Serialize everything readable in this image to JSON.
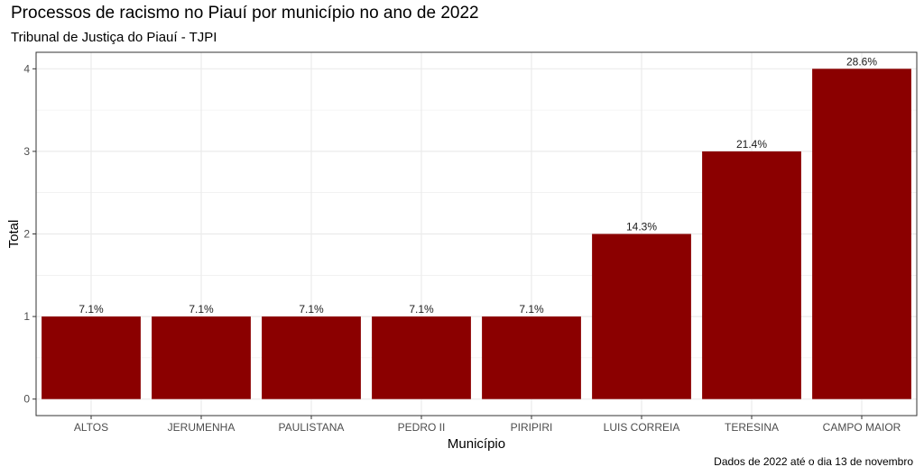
{
  "chart_data": {
    "type": "bar",
    "title": "Processos de racismo no Piauí por município no ano de 2022",
    "subtitle": "Tribunal de Justiça do Piauí - TJPI",
    "caption": "Dados de 2022 até o dia 13 de novembro",
    "xlabel": "Município",
    "ylabel": "Total",
    "categories": [
      "ALTOS",
      "JERUMENHA",
      "PAULISTANA",
      "PEDRO II",
      "PIRIPIRI",
      "LUIS CORREIA",
      "TERESINA",
      "CAMPO MAIOR"
    ],
    "values": [
      1,
      1,
      1,
      1,
      1,
      2,
      3,
      4
    ],
    "labels": [
      "7.1%",
      "7.1%",
      "7.1%",
      "7.1%",
      "7.1%",
      "14.3%",
      "21.4%",
      "28.6%"
    ],
    "yticks": [
      0,
      1,
      2,
      3,
      4
    ],
    "ylim": [
      -0.2,
      4.2
    ],
    "grid": true,
    "colors": {
      "bar": "#8b0000",
      "grid": "#ebebeb",
      "panel_border": "#333333"
    }
  }
}
